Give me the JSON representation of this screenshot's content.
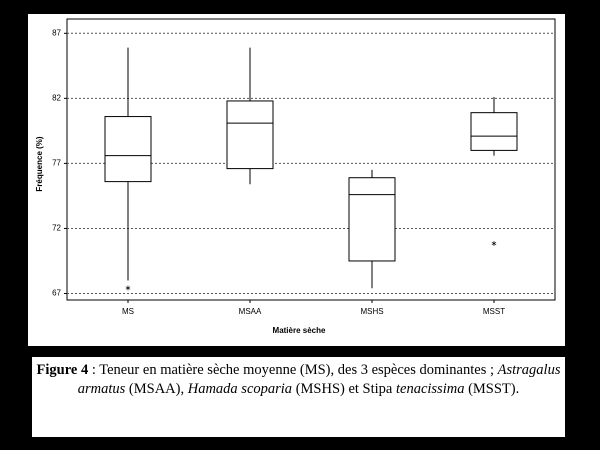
{
  "chart_data": {
    "type": "box",
    "ylabel": "Fréquence (%)",
    "xlabel": "Matière sèche",
    "categories": [
      "MS",
      "MSAA",
      "MSHS",
      "MSST"
    ],
    "boxes": [
      {
        "whisker_low": 68.0,
        "q1": 75.6,
        "median": 77.6,
        "q3": 80.6,
        "whisker_high": 85.9,
        "outliers": [
          67.4
        ]
      },
      {
        "whisker_low": 75.4,
        "q1": 76.6,
        "median": 80.1,
        "q3": 81.8,
        "whisker_high": 85.9,
        "outliers": []
      },
      {
        "whisker_low": 67.4,
        "q1": 69.5,
        "median": 74.6,
        "q3": 75.9,
        "whisker_high": 76.5,
        "outliers": []
      },
      {
        "whisker_low": 77.6,
        "q1": 78.0,
        "median": 79.1,
        "q3": 80.9,
        "whisker_high": 82.1,
        "outliers": [
          70.8
        ]
      }
    ],
    "ylim": [
      66.5,
      88.1
    ],
    "yticks": [
      67,
      72,
      77,
      82,
      87
    ],
    "grid": true
  },
  "caption": {
    "label": "Figure 4",
    "parts": [
      {
        "text": " : Teneur en matière sèche moyenne (MS), des 3 espèces dominantes ; ",
        "italic": false
      },
      {
        "text": "Astragalus armatus",
        "italic": true
      },
      {
        "text": " (MSAA), ",
        "italic": false
      },
      {
        "text": "Hamada scoparia",
        "italic": true
      },
      {
        "text": " (MSHS) et Stipa ",
        "italic": false
      },
      {
        "text": "tenacissima",
        "italic": true
      },
      {
        "text": " (MSST).",
        "italic": false
      }
    ]
  }
}
